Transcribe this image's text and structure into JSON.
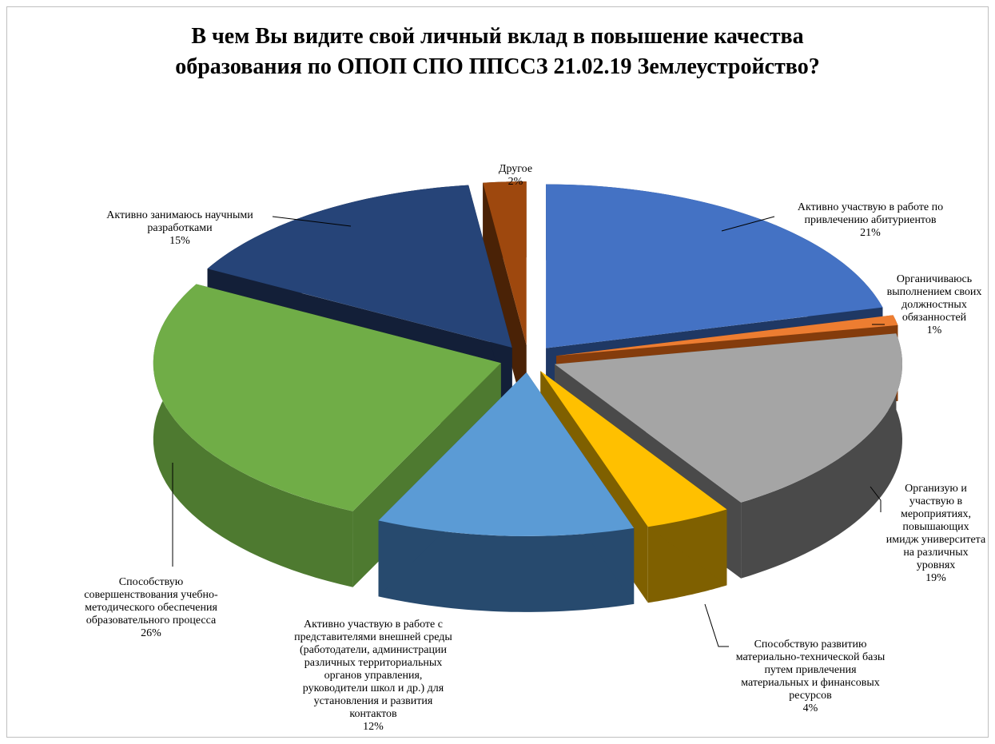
{
  "chart_data": {
    "type": "pie",
    "title_lines": [
      "В чем Вы видите свой личный вклад в повышение качества",
      "образования по ОПОП СПО ППССЗ  21.02.19 Землеустройство?"
    ],
    "slices": [
      {
        "label_lines": [
          "Активно участвую в работе по",
          "привлечению абитуриентов"
        ],
        "value": 21,
        "value_text": "21%",
        "color": "#4472C4",
        "side": "#1F3864"
      },
      {
        "label_lines": [
          "Органичиваюсь",
          "выполнением своих",
          "должностных",
          "обязанностей"
        ],
        "value": 1,
        "value_text": "1%",
        "color": "#ED7D31",
        "side": "#843C0C"
      },
      {
        "label_lines": [
          "Организую и",
          "участвую в",
          "мероприятиях,",
          "повышающих",
          "имидж университета",
          "на различных",
          "уровнях"
        ],
        "value": 19,
        "value_text": "19%",
        "color": "#A5A5A5",
        "side": "#4A4A4A"
      },
      {
        "label_lines": [
          "Способствую развитию",
          "материально-технической базы",
          "путем привлечения",
          "материальных и финансовых",
          "ресурсов"
        ],
        "value": 4,
        "value_text": "4%",
        "color": "#FFC000",
        "side": "#7F6000"
      },
      {
        "label_lines": [
          "Активно участвую в работе с",
          "представителями внешней среды",
          "(работодатели, администрации",
          "различных территориальных",
          "органов управления,",
          "руководители школ и др.) для",
          "установления и развития",
          "контактов"
        ],
        "value": 12,
        "value_text": "12%",
        "color": "#5B9BD5",
        "side": "#274A6E"
      },
      {
        "label_lines": [
          "Способствую",
          "совершенствования учебно-",
          "методического обеспечения",
          "образовательного процесса"
        ],
        "value": 26,
        "value_text": "26%",
        "color": "#70AD47",
        "side": "#4E7A30"
      },
      {
        "label_lines": [
          "Активно занимаюсь научными",
          "разработками"
        ],
        "value": 15,
        "value_text": "15%",
        "color": "#264478",
        "side": "#131F38"
      },
      {
        "label_lines": [
          "Другое"
        ],
        "value": 2,
        "value_text": "2%",
        "color": "#9E480E",
        "side": "#4A2206"
      }
    ]
  }
}
